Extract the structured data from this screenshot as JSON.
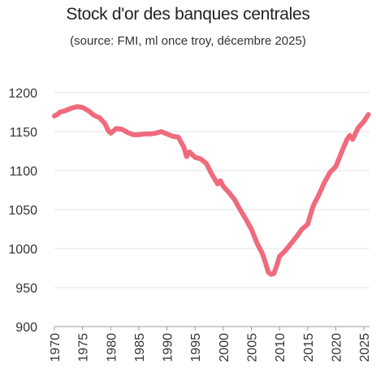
{
  "title": "Stock d'or des banques centrales",
  "subtitle": "(source: FMI, ml once troy, décembre 2025)",
  "colors": {
    "line": "#f06a7d",
    "grid": "#e3e3e3",
    "axis": "#999999",
    "text": "#333333"
  },
  "chart_data": {
    "type": "line",
    "title": "Stock d'or des banques centrales",
    "subtitle": "(source: FMI, ml once troy, décembre 2025)",
    "xlabel": "",
    "ylabel": "",
    "xlim": [
      1970,
      2026
    ],
    "ylim": [
      900,
      1200
    ],
    "grid": true,
    "legend": "none",
    "yticks": [
      900,
      950,
      1000,
      1050,
      1100,
      1150,
      1200
    ],
    "xticks": [
      1970,
      1975,
      1980,
      1985,
      1990,
      1995,
      2000,
      2005,
      2010,
      2015,
      2020,
      2025
    ],
    "series": [
      {
        "name": "",
        "x": [
          1970,
          1970.5,
          1971,
          1972,
          1973,
          1974,
          1975,
          1976,
          1977,
          1978,
          1979,
          1979.5,
          1980,
          1981,
          1982,
          1983,
          1984,
          1985,
          1986,
          1987,
          1988,
          1989,
          1990,
          1991,
          1992,
          1993,
          1993.5,
          1994,
          1995,
          1996,
          1997,
          1998,
          1999,
          1999.5,
          2000,
          2001,
          2002,
          2003,
          2004,
          2005,
          2006,
          2007,
          2007.5,
          2008,
          2008.5,
          2009,
          2009.5,
          2010,
          2011,
          2012,
          2013,
          2014,
          2015,
          2016,
          2017,
          2018,
          2019,
          2020,
          2021,
          2022,
          2022.5,
          2023,
          2024,
          2025,
          2025.8
        ],
        "y": [
          1170,
          1172,
          1175,
          1177,
          1180,
          1182,
          1181,
          1177,
          1171,
          1168,
          1160,
          1152,
          1148,
          1154,
          1153,
          1149,
          1146,
          1146,
          1147,
          1147,
          1148,
          1150,
          1147,
          1144,
          1143,
          1130,
          1118,
          1124,
          1117,
          1115,
          1109,
          1095,
          1083,
          1087,
          1080,
          1072,
          1063,
          1050,
          1038,
          1025,
          1007,
          993,
          982,
          970,
          967,
          968,
          978,
          990,
          997,
          1006,
          1015,
          1025,
          1031,
          1055,
          1069,
          1085,
          1098,
          1105,
          1123,
          1140,
          1145,
          1140,
          1155,
          1163,
          1172
        ]
      }
    ]
  }
}
